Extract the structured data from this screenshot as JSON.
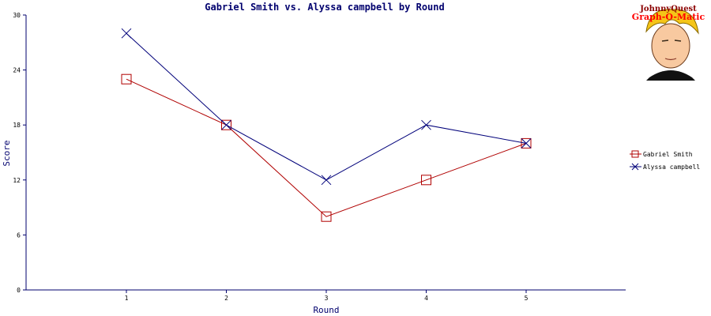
{
  "chart_data": {
    "type": "line",
    "title": "Gabriel Smith vs. Alyssa campbell  by Round",
    "xlabel": "Round",
    "ylabel": "Score",
    "categories": [
      "1",
      "2",
      "3",
      "4",
      "5"
    ],
    "ylim": [
      0,
      30
    ],
    "yticks": [
      "0",
      "6",
      "12",
      "18",
      "24",
      "30"
    ],
    "grid": false,
    "legend_position": "right",
    "series": [
      {
        "name": "Gabriel Smith",
        "values": [
          23,
          18,
          8,
          12,
          16
        ],
        "color": "#b00000",
        "marker": "square"
      },
      {
        "name": "Alyssa campbell",
        "values": [
          28,
          18,
          12,
          18,
          16
        ],
        "color": "#00007a",
        "marker": "x"
      }
    ]
  },
  "logo": {
    "line1": "JohnnyQuest",
    "line2": "Graph-O-Matic",
    "line1_color": "#8b0000",
    "line2_color": "#ff0000"
  },
  "colors": {
    "axis": "#00006e",
    "title": "#00006e"
  }
}
